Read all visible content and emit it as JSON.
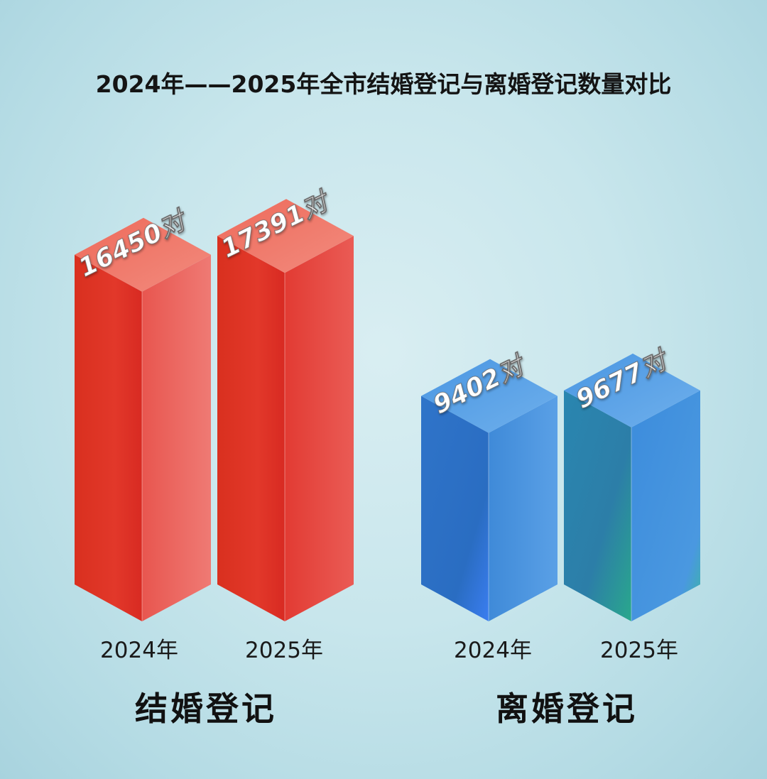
{
  "chart_data": {
    "type": "bar",
    "title": "2024年——2025年全市结婚登记与离婚登记数量对比",
    "unit": "对",
    "groups": [
      {
        "name": "结婚登记",
        "color": "#e02a1f",
        "bars": [
          {
            "category": "2024年",
            "value": 16450,
            "label": "16450对"
          },
          {
            "category": "2025年",
            "value": 17391,
            "label": "17391对"
          }
        ]
      },
      {
        "name": "离婚登记",
        "color": "#3a86d6",
        "bars": [
          {
            "category": "2024年",
            "value": 9402,
            "label": "9402对"
          },
          {
            "category": "2025年",
            "value": 9677,
            "label": "9677对"
          }
        ]
      }
    ]
  }
}
